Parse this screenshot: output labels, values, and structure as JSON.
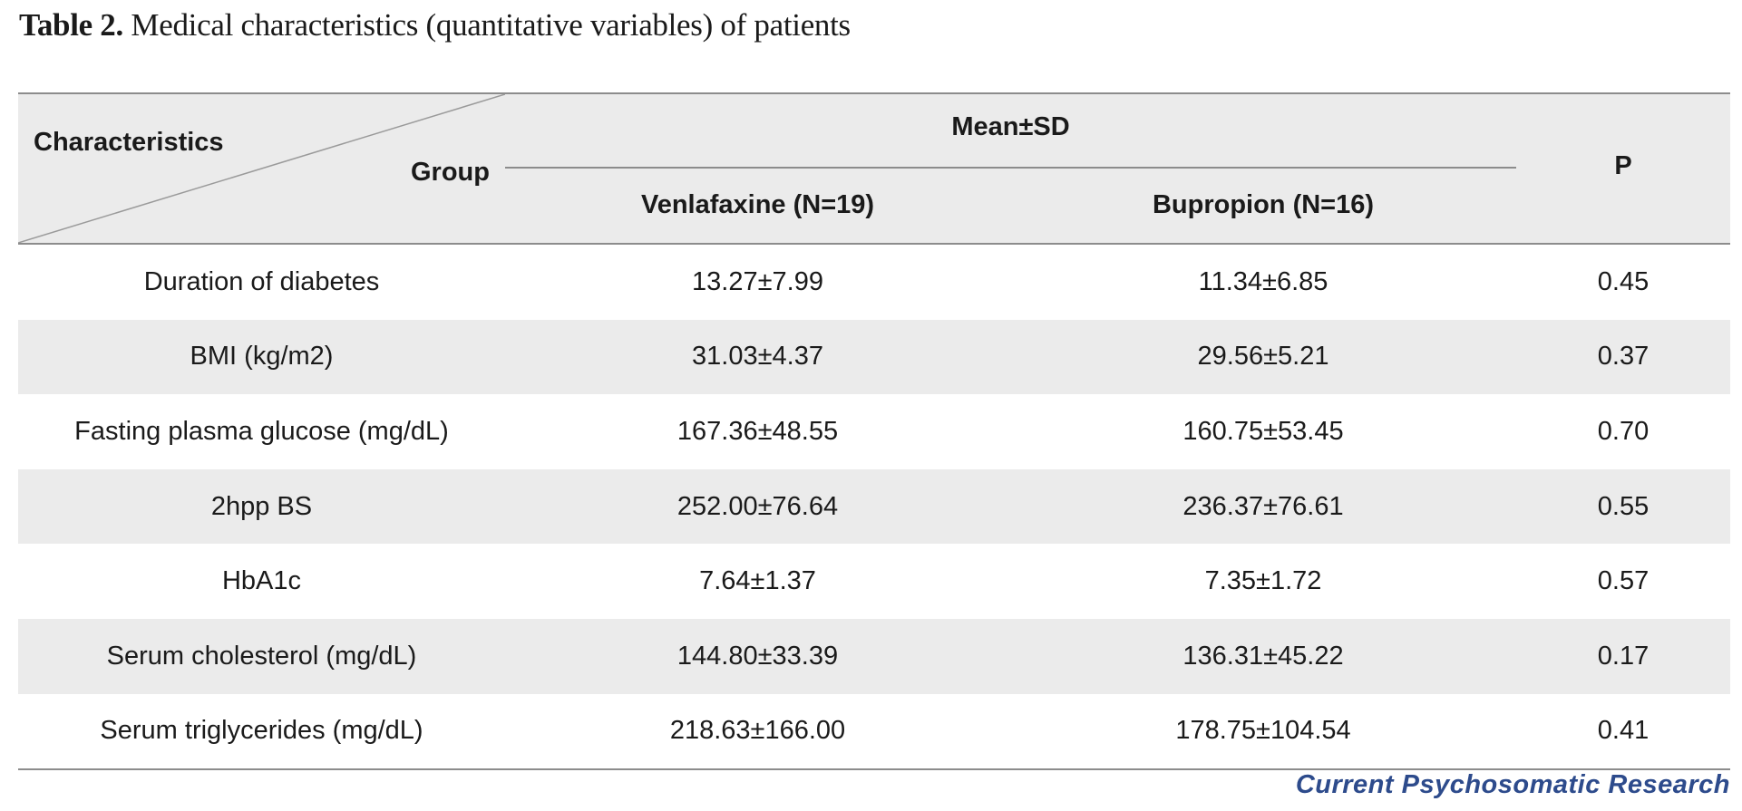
{
  "caption": {
    "label": "Table 2.",
    "text": " Medical characteristics (quantitative variables) of patients"
  },
  "header": {
    "characteristics": "Characteristics",
    "group": "Group",
    "mean_sd": "Mean±SD",
    "col_venlafaxine": "Venlafaxine (N=19)",
    "col_bupropion": "Bupropion (N=16)",
    "p": "P"
  },
  "rows": [
    {
      "characteristic": "Duration of diabetes",
      "venlafaxine": "13.27±7.99",
      "bupropion": "11.34±6.85",
      "p": "0.45"
    },
    {
      "characteristic": "BMI (kg/m2)",
      "venlafaxine": "31.03±4.37",
      "bupropion": "29.56±5.21",
      "p": "0.37"
    },
    {
      "characteristic": "Fasting plasma glucose (mg/dL)",
      "venlafaxine": "167.36±48.55",
      "bupropion": "160.75±53.45",
      "p": "0.70"
    },
    {
      "characteristic": "2hpp BS",
      "venlafaxine": "252.00±76.64",
      "bupropion": "236.37±76.61",
      "p": "0.55"
    },
    {
      "characteristic": "HbA1c",
      "venlafaxine": "7.64±1.37",
      "bupropion": "7.35±1.72",
      "p": "0.57"
    },
    {
      "characteristic": "Serum cholesterol (mg/dL)",
      "venlafaxine": "144.80±33.39",
      "bupropion": "136.31±45.22",
      "p": "0.17"
    },
    {
      "characteristic": "Serum triglycerides (mg/dL)",
      "venlafaxine": "218.63±166.00",
      "bupropion": "178.75±104.54",
      "p": "0.41"
    }
  ],
  "journal": "Current Psychosomatic Research",
  "colors": {
    "header_bg": "#ebebeb",
    "alt_row_bg": "#ebebeb",
    "rule": "#8c8c8c",
    "journal": "#2d4b8c"
  }
}
